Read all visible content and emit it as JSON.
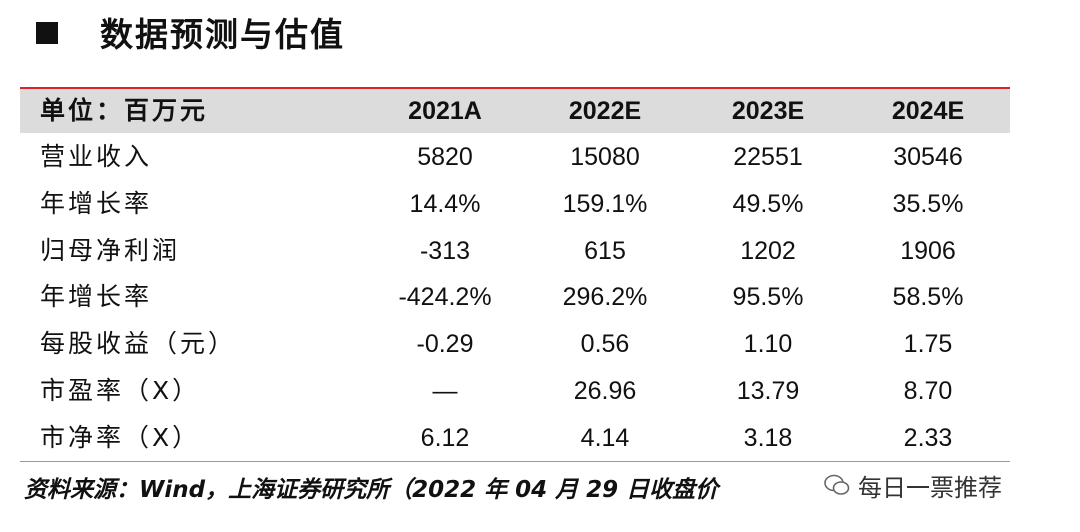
{
  "header": {
    "title": "数据预测与估值"
  },
  "table": {
    "columns": [
      "单位：百万元",
      "2021A",
      "2022E",
      "2023E",
      "2024E"
    ],
    "rows": [
      [
        "营业收入",
        "5820",
        "15080",
        "22551",
        "30546"
      ],
      [
        "年增长率",
        "14.4%",
        "159.1%",
        "49.5%",
        "35.5%"
      ],
      [
        "归母净利润",
        "-313",
        "615",
        "1202",
        "1906"
      ],
      [
        "年增长率",
        "-424.2%",
        "296.2%",
        "95.5%",
        "58.5%"
      ],
      [
        "每股收益（元）",
        "-0.29",
        "0.56",
        "1.10",
        "1.75"
      ],
      [
        "市盈率（X）",
        "—",
        "26.96",
        "13.79",
        "8.70"
      ],
      [
        "市净率（X）",
        "6.12",
        "4.14",
        "3.18",
        "2.33"
      ]
    ]
  },
  "footer": {
    "source": "资料来源：Wind，上海证券研究所（2022 年 04 月 29 日收盘价"
  },
  "watermark": {
    "text": "每日一票推荐"
  }
}
